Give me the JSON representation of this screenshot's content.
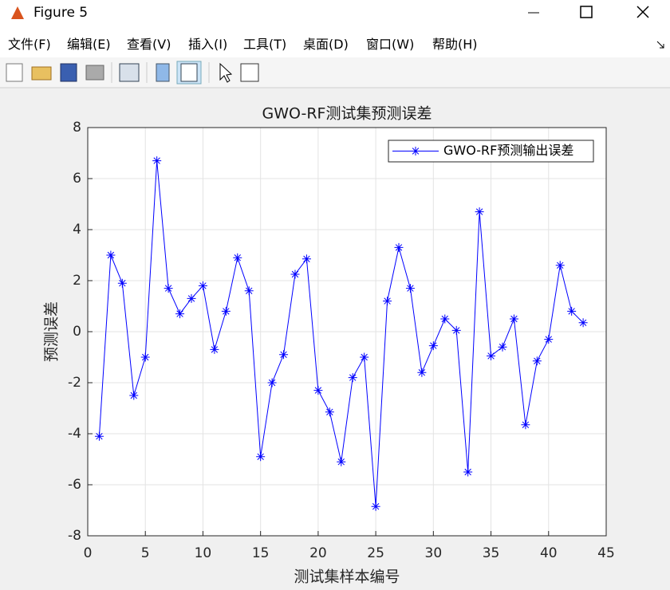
{
  "window": {
    "title": "Figure 5",
    "menu": [
      "文件(F)",
      "编辑(E)",
      "查看(V)",
      "插入(I)",
      "工具(T)",
      "桌面(D)",
      "窗口(W)",
      "帮助(H)"
    ]
  },
  "chart_data": {
    "type": "line",
    "title": "GWO-RF测试集预测误差",
    "x_label": "测试集样本编号",
    "y_label": "预测误差",
    "x": [
      1,
      2,
      3,
      4,
      5,
      6,
      7,
      8,
      9,
      10,
      11,
      12,
      13,
      14,
      15,
      16,
      17,
      18,
      19,
      20,
      21,
      22,
      23,
      24,
      25,
      26,
      27,
      28,
      29,
      30,
      31,
      32,
      33,
      34,
      35,
      36,
      37,
      38,
      39,
      40,
      41,
      42,
      43
    ],
    "series": [
      {
        "name": "GWO-RF预测输出误差",
        "color": "#0000ff",
        "marker": "*",
        "values": [
          -4.1,
          3.0,
          1.9,
          -2.5,
          -1.0,
          6.7,
          1.7,
          0.7,
          1.3,
          1.8,
          -0.7,
          0.8,
          2.9,
          1.6,
          -4.9,
          -2.0,
          -0.9,
          2.25,
          2.85,
          -2.3,
          -3.15,
          -5.1,
          -1.8,
          -1.0,
          -6.85,
          1.2,
          3.3,
          1.7,
          -1.6,
          -0.55,
          0.5,
          0.05,
          -5.5,
          4.7,
          -0.95,
          -0.6,
          0.5,
          -3.65,
          -1.15,
          -0.3,
          2.6,
          0.8,
          0.35
        ]
      }
    ],
    "xlim": [
      0,
      45
    ],
    "xticks": [
      0,
      5,
      10,
      15,
      20,
      25,
      30,
      35,
      40,
      45
    ],
    "ylim": [
      -8,
      8
    ],
    "yticks": [
      -8,
      -6,
      -4,
      -2,
      0,
      2,
      4,
      6,
      8
    ],
    "grid": true,
    "legend": "upper right"
  }
}
